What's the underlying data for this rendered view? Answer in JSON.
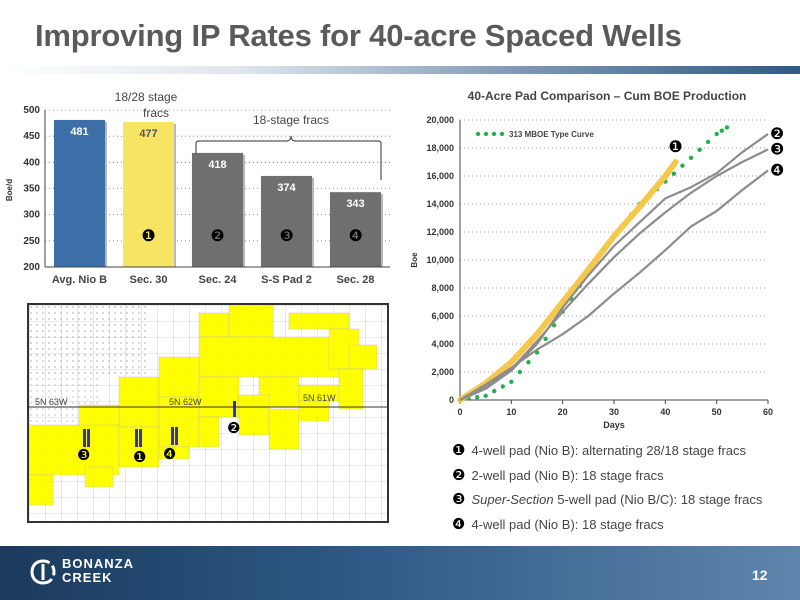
{
  "slide": {
    "title": "Improving IP Rates for 40-acre Spaced Wells",
    "page_number": "12",
    "logo_line1": "BONANZA",
    "logo_line2": "CREEK"
  },
  "colors": {
    "blue_bar": "#3c6ea8",
    "yellow_bar": "#f7e463",
    "gray_bar": "#6f6f6f",
    "type_curve": "#22b14c",
    "pad1_line": "#f5c84c",
    "pad_lines": "#8c8c8c",
    "map_yellow": "#ffff00"
  },
  "chart_data": [
    {
      "type": "bar",
      "title": "",
      "categories": [
        "Avg. Nio B",
        "Sec. 30",
        "Sec. 24",
        "S-S Pad 2",
        "Sec. 28"
      ],
      "values": [
        481,
        477,
        418,
        374,
        343
      ],
      "data_labels": [
        "481",
        "477",
        "418",
        "374",
        "343"
      ],
      "bar_markers": [
        "",
        "❶",
        "❷",
        "❸",
        "❹"
      ],
      "ylabel": "Boe/d",
      "xlabel": "",
      "ylim": [
        200,
        500
      ],
      "yticks": [
        200,
        250,
        300,
        350,
        400,
        450,
        500
      ],
      "grid": "horizontal dotted",
      "annotations": {
        "sec30": "18/28 stage fracs",
        "bracket": "18-stage fracs"
      }
    },
    {
      "type": "line",
      "title": "40-Acre Pad Comparison – Cum BOE Production",
      "xlabel": "Days",
      "ylabel": "Boe",
      "xlim": [
        0,
        60
      ],
      "ylim": [
        0,
        20000
      ],
      "xticks": [
        0,
        10,
        20,
        30,
        40,
        50,
        60
      ],
      "yticks": [
        0,
        2000,
        4000,
        6000,
        8000,
        10000,
        12000,
        14000,
        16000,
        18000,
        20000
      ],
      "legend": "top-left",
      "series": [
        {
          "name": "313 MBOE Type Curve",
          "style": "dotted",
          "x": [
            0,
            5,
            10,
            15,
            20,
            25,
            30,
            35,
            40,
            45,
            50,
            53
          ],
          "y": [
            0,
            300,
            1300,
            3400,
            6300,
            9100,
            11700,
            14000,
            15600,
            17300,
            19000,
            19700
          ]
        },
        {
          "name": "❶",
          "style": "thick-yellow",
          "x": [
            0,
            5,
            10,
            15,
            20,
            25,
            30,
            35,
            40,
            42
          ],
          "y": [
            0,
            1200,
            2700,
            4700,
            7000,
            9300,
            11700,
            13800,
            16000,
            17000
          ]
        },
        {
          "name": "❷",
          "x": [
            0,
            5,
            10,
            15,
            20,
            25,
            30,
            35,
            40,
            45,
            50,
            55,
            60
          ],
          "y": [
            0,
            800,
            2100,
            4000,
            6600,
            8900,
            11000,
            12700,
            14400,
            15200,
            16200,
            17700,
            19000
          ]
        },
        {
          "name": "❸",
          "x": [
            0,
            5,
            10,
            15,
            20,
            25,
            30,
            35,
            40,
            45,
            50,
            55,
            60
          ],
          "y": [
            0,
            900,
            2200,
            4200,
            6300,
            8300,
            10200,
            11900,
            13400,
            14800,
            16000,
            17000,
            17900
          ]
        },
        {
          "name": "❹",
          "x": [
            0,
            5,
            10,
            15,
            20,
            25,
            30,
            35,
            40,
            45,
            50,
            55,
            60
          ],
          "y": [
            0,
            1100,
            2300,
            3600,
            4700,
            6000,
            7600,
            9100,
            10700,
            12400,
            13500,
            15000,
            16400
          ]
        }
      ]
    }
  ],
  "legend_notes": [
    {
      "marker": "❶",
      "text": "4-well pad (Nio B): alternating 28/18 stage fracs"
    },
    {
      "marker": "❷",
      "text": "2-well pad (Nio B): 18 stage fracs"
    },
    {
      "marker": "❸",
      "text_italic": "Super-Section",
      "text": " 5-well pad (Nio B/C): 18 stage fracs"
    },
    {
      "marker": "❹",
      "text": "4-well pad (Nio B): 18 stage fracs"
    }
  ],
  "map": {
    "township_labels": [
      "5N 63W",
      "5N 62W",
      "5N 61W"
    ],
    "markers": [
      "❶",
      "❷",
      "❸",
      "❹"
    ]
  }
}
